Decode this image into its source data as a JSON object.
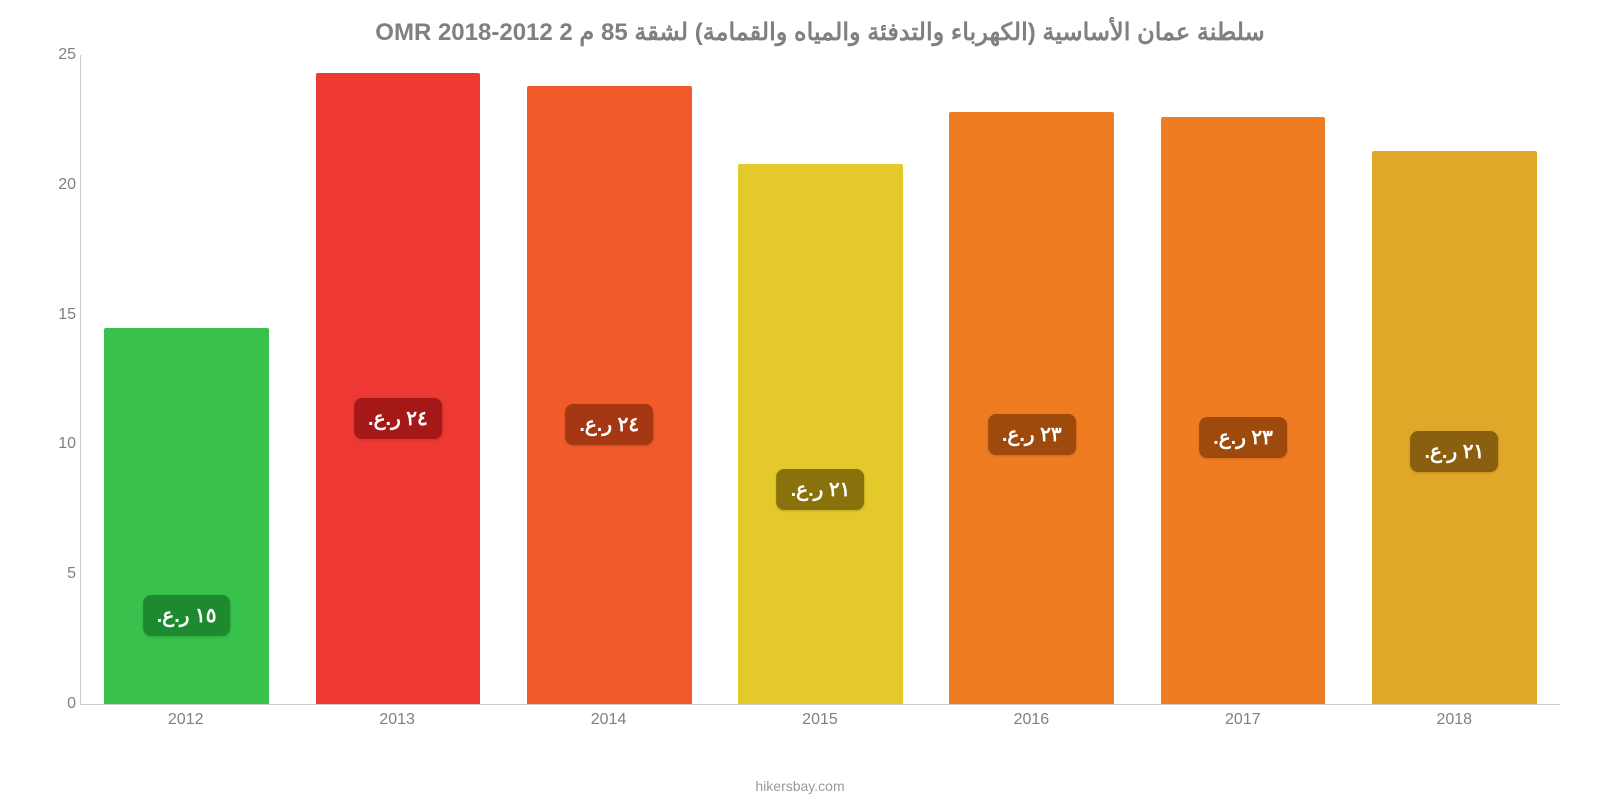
{
  "chart": {
    "type": "bar",
    "title": "سلطنة عمان الأساسية (الكهرباء والتدفئة والمياه والقمامة) لشقة 85 م 2 2012-2018 OMR",
    "title_fontsize": 24,
    "title_color": "#808080",
    "background_color": "#ffffff",
    "axis_line_color": "#cccccc",
    "tick_label_color": "#808080",
    "tick_label_fontsize": 16,
    "ylim": [
      0,
      25
    ],
    "yticks": [
      0,
      5,
      10,
      15,
      20,
      25
    ],
    "bar_width_pct": 78,
    "bar_label_fontsize": 20,
    "bar_label_radius": 8,
    "source_text": "hikersbay.com",
    "source_color": "#999999",
    "source_fontsize": 14,
    "categories": [
      "2012",
      "2013",
      "2014",
      "2015",
      "2016",
      "2017",
      "2018"
    ],
    "data": [
      {
        "year": "2012",
        "value": 14.5,
        "label": "١٥ ر.ع.",
        "bar_color": "#38c24d",
        "label_bg": "#1e8a2f",
        "label_bottom_pct": 18
      },
      {
        "year": "2013",
        "value": 24.3,
        "label": "٢٤ ر.ع.",
        "bar_color": "#ed3833",
        "label_bg": "#a51818",
        "label_bottom_pct": 42
      },
      {
        "year": "2014",
        "value": 23.8,
        "label": "٢٤ ر.ع.",
        "bar_color": "#f15a2b",
        "label_bg": "#a53712",
        "label_bottom_pct": 42
      },
      {
        "year": "2015",
        "value": 20.8,
        "label": "٢١ ر.ع.",
        "bar_color": "#e3c92a",
        "label_bg": "#89720c",
        "label_bottom_pct": 36
      },
      {
        "year": "2016",
        "value": 22.8,
        "label": "٢٣ ر.ع.",
        "bar_color": "#f07c22",
        "label_bg": "#9e4a0d",
        "label_bottom_pct": 42
      },
      {
        "year": "2017",
        "value": 22.6,
        "label": "٢٣ ر.ع.",
        "bar_color": "#f07c22",
        "label_bg": "#9e4a0d",
        "label_bottom_pct": 42
      },
      {
        "year": "2018",
        "value": 21.3,
        "label": "٢١ ر.ع.",
        "bar_color": "#e1a729",
        "label_bg": "#8a5f0f",
        "label_bottom_pct": 42
      }
    ]
  }
}
